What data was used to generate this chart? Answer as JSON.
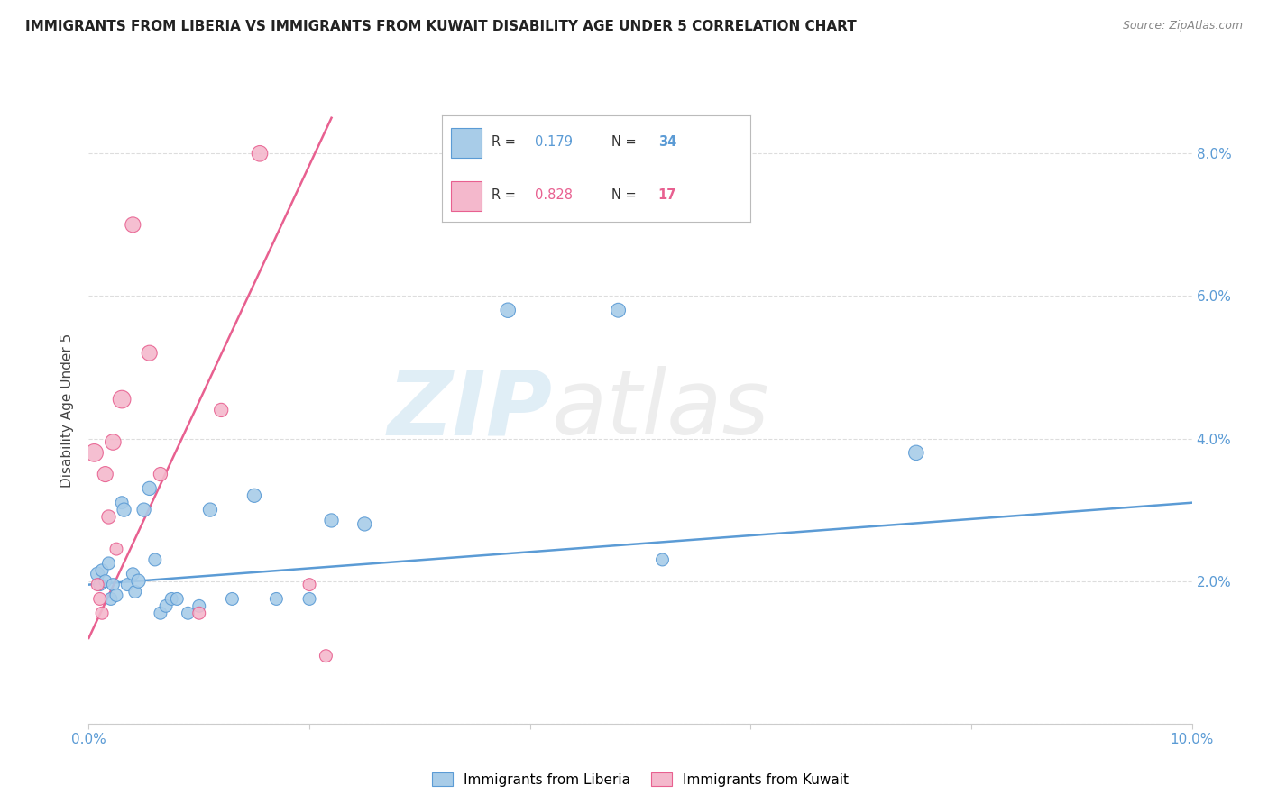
{
  "title": "IMMIGRANTS FROM LIBERIA VS IMMIGRANTS FROM KUWAIT DISABILITY AGE UNDER 5 CORRELATION CHART",
  "source": "Source: ZipAtlas.com",
  "ylabel": "Disability Age Under 5",
  "xlim": [
    0.0,
    0.1
  ],
  "ylim": [
    0.0,
    0.088
  ],
  "ytick_vals": [
    0.0,
    0.02,
    0.04,
    0.06,
    0.08
  ],
  "ytick_labels": [
    "",
    "2.0%",
    "4.0%",
    "6.0%",
    "8.0%"
  ],
  "xtick_vals": [
    0.0,
    0.02,
    0.04,
    0.06,
    0.08,
    0.1
  ],
  "xtick_labels": [
    "0.0%",
    "",
    "",
    "",
    "",
    "10.0%"
  ],
  "watermark_zip": "ZIP",
  "watermark_atlas": "atlas",
  "legend_r1": "R = ",
  "legend_v1": "0.179",
  "legend_n1": "N = ",
  "legend_nv1": "34",
  "legend_r2": "R = ",
  "legend_v2": "0.828",
  "legend_n2": "N = ",
  "legend_nv2": "17",
  "blue_fill": "#a8cce8",
  "blue_edge": "#5b9bd5",
  "pink_fill": "#f4b8cc",
  "pink_edge": "#e86090",
  "blue_line": "#5b9bd5",
  "pink_line": "#e86090",
  "tick_color": "#5b9bd5",
  "liberia_x": [
    0.0008,
    0.001,
    0.0012,
    0.0015,
    0.0018,
    0.002,
    0.0022,
    0.0025,
    0.003,
    0.0032,
    0.0035,
    0.004,
    0.0042,
    0.0045,
    0.005,
    0.0055,
    0.006,
    0.0065,
    0.007,
    0.0075,
    0.008,
    0.009,
    0.01,
    0.011,
    0.013,
    0.015,
    0.017,
    0.02,
    0.022,
    0.025,
    0.038,
    0.048,
    0.052,
    0.075
  ],
  "liberia_y": [
    0.021,
    0.0195,
    0.0215,
    0.02,
    0.0225,
    0.0175,
    0.0195,
    0.018,
    0.031,
    0.03,
    0.0195,
    0.021,
    0.0185,
    0.02,
    0.03,
    0.033,
    0.023,
    0.0155,
    0.0165,
    0.0175,
    0.0175,
    0.0155,
    0.0165,
    0.03,
    0.0175,
    0.032,
    0.0175,
    0.0175,
    0.0285,
    0.028,
    0.058,
    0.058,
    0.023,
    0.038
  ],
  "liberia_s": [
    120,
    100,
    100,
    100,
    100,
    100,
    100,
    100,
    100,
    120,
    100,
    100,
    100,
    120,
    120,
    120,
    100,
    100,
    100,
    100,
    100,
    100,
    100,
    120,
    100,
    120,
    100,
    100,
    120,
    120,
    140,
    130,
    100,
    140
  ],
  "kuwait_x": [
    0.0005,
    0.0008,
    0.001,
    0.0012,
    0.0015,
    0.0018,
    0.0022,
    0.0025,
    0.003,
    0.004,
    0.0055,
    0.0065,
    0.01,
    0.012,
    0.0155,
    0.02,
    0.0215
  ],
  "kuwait_y": [
    0.038,
    0.0195,
    0.0175,
    0.0155,
    0.035,
    0.029,
    0.0395,
    0.0245,
    0.0455,
    0.07,
    0.052,
    0.035,
    0.0155,
    0.044,
    0.08,
    0.0195,
    0.0095
  ],
  "kuwait_s": [
    200,
    100,
    100,
    100,
    150,
    120,
    160,
    100,
    200,
    150,
    150,
    120,
    100,
    120,
    160,
    100,
    100
  ],
  "blue_trend_x": [
    0.0,
    0.1
  ],
  "blue_trend_y": [
    0.0195,
    0.031
  ],
  "pink_trend_x": [
    0.0,
    0.022
  ],
  "pink_trend_y": [
    0.012,
    0.085
  ]
}
